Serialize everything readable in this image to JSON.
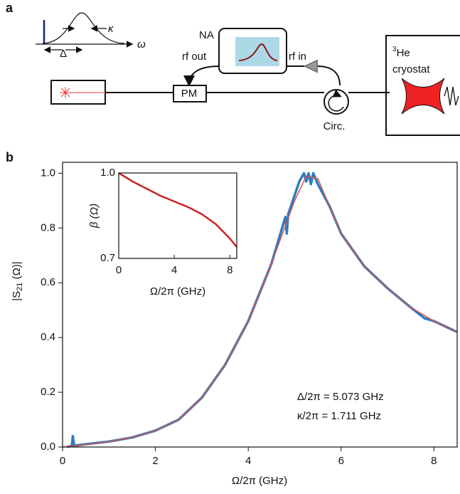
{
  "panel_labels": [
    "a",
    "b"
  ],
  "diagram": {
    "kappa": "κ",
    "delta": "Δ",
    "omega": "ω",
    "na": "NA",
    "rf_out": "rf out",
    "rf_in": "rf in",
    "pm": "PM",
    "circ": "Circ.",
    "cryostat_sup": "3",
    "cryostat_he": "He",
    "cryostat": "cryostat"
  },
  "chart_data": [
    {
      "type": "line",
      "xlabel": "Ω/2π (GHz)",
      "ylabel_parts": [
        "|S",
        "21",
        " (Ω)|"
      ],
      "xlim": [
        0,
        8.5
      ],
      "ylim": [
        0,
        1.04
      ],
      "xticks": [
        0,
        2,
        4,
        6,
        8
      ],
      "yticks": [
        {
          "value": 0,
          "label": "0.0"
        },
        0.2,
        0.4,
        0.6,
        0.8,
        {
          "value": 1,
          "label": "1.0"
        }
      ],
      "annotations": [
        "Δ/2π = 5.073 GHz",
        "κ/2π = 1.711 GHz"
      ],
      "series": [
        {
          "color": "#2f7bbf",
          "width": 3.5,
          "x": [
            0.1,
            0.2,
            0.22,
            0.25,
            0.5,
            1,
            1.5,
            2,
            2.5,
            3,
            3.5,
            4,
            4.5,
            4.8,
            4.83,
            4.86,
            4.9,
            5.0,
            5.1,
            5.2,
            5.25,
            5.3,
            5.35,
            5.4,
            5.5,
            5.75,
            6,
            6.5,
            7,
            7.5,
            7.8,
            8,
            8.5
          ],
          "values": [
            0.0,
            0.005,
            0.04,
            0.005,
            0.01,
            0.02,
            0.035,
            0.06,
            0.1,
            0.18,
            0.3,
            0.46,
            0.67,
            0.84,
            0.78,
            0.85,
            0.87,
            0.92,
            0.97,
            1.0,
            0.97,
            1.0,
            0.96,
            1.0,
            0.96,
            0.88,
            0.78,
            0.66,
            0.58,
            0.51,
            0.47,
            0.46,
            0.42
          ]
        },
        {
          "color": "#d9534f",
          "width": 1.5,
          "x": [
            0,
            0.5,
            1,
            1.5,
            2,
            2.5,
            3,
            3.5,
            4,
            4.5,
            5,
            5.25,
            5.5,
            6,
            6.5,
            7,
            7.5,
            8,
            8.5
          ],
          "values": [
            0.0,
            0.008,
            0.02,
            0.035,
            0.06,
            0.1,
            0.18,
            0.3,
            0.46,
            0.67,
            0.9,
            0.99,
            0.98,
            0.78,
            0.66,
            0.58,
            0.51,
            0.46,
            0.42
          ]
        }
      ]
    },
    {
      "type": "line",
      "xlabel": "Ω/2π (GHz)",
      "ylabel": "β (Ω)",
      "xlim": [
        0,
        8.5
      ],
      "ylim": [
        0.7,
        1.0
      ],
      "xticks": [
        0,
        4,
        8
      ],
      "yticks": [
        0.7,
        {
          "value": 1,
          "label": "1.0"
        }
      ],
      "series": [
        {
          "color": "#cc2222",
          "width": 2.5,
          "x": [
            0,
            1,
            2,
            3,
            4,
            5,
            6,
            7,
            8,
            8.5
          ],
          "values": [
            1.0,
            0.97,
            0.945,
            0.92,
            0.9,
            0.88,
            0.855,
            0.82,
            0.77,
            0.74
          ]
        }
      ]
    }
  ]
}
